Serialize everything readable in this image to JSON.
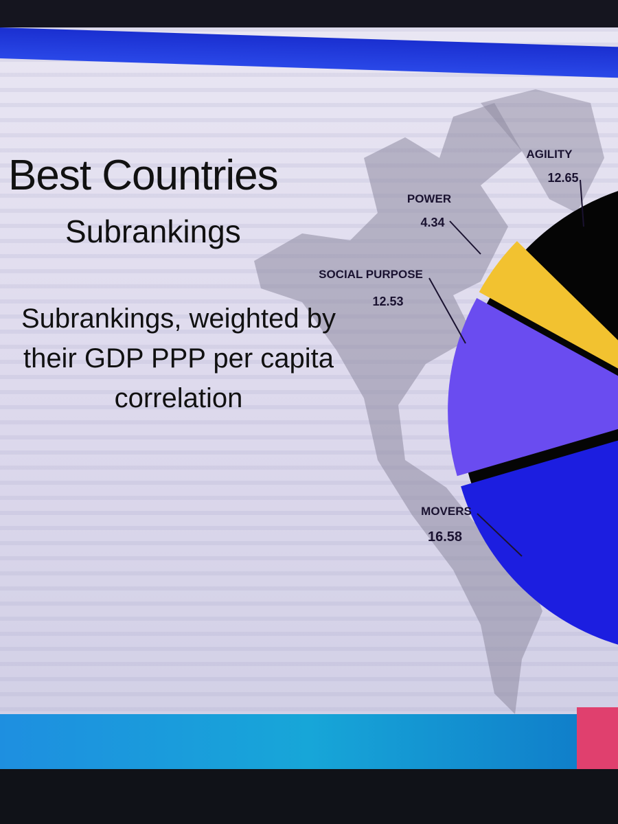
{
  "slide": {
    "title": "Best Countries",
    "subtitle": "Subrankings",
    "description": "Subrankings, weighted by their GDP PPP per capita correlation"
  },
  "chart_data": {
    "type": "pie",
    "title": "",
    "slices": [
      {
        "label": "AGILITY",
        "value": 12.65,
        "color": "#050505"
      },
      {
        "label": "POWER",
        "value": 4.34,
        "color": "#f2c230"
      },
      {
        "label": "SOCIAL PURPOSE",
        "value": 12.53,
        "color": "#6a4cf0"
      },
      {
        "label": "MOVERS",
        "value": 16.58,
        "color": "#1c1ee0"
      }
    ],
    "data_labels": [
      "12.65",
      "4.34",
      "12.53",
      "16.58"
    ],
    "style": "exploded, partially cropped at right edge",
    "remainder_color": "#050505"
  },
  "colors": {
    "top_bar": "#1a2fd0",
    "bottom_bar": "#1e8fe0",
    "background": "#e4e1f0"
  }
}
